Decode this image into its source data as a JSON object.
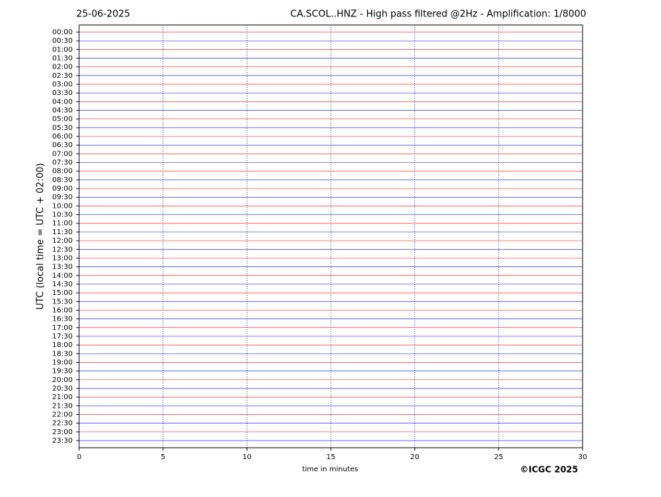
{
  "chart_data": {
    "type": "helicorder",
    "date": "25-06-2025",
    "title": "CA.SCOL..HNZ - High pass filtered @2Hz - Amplification: 1/8000",
    "y_label": "UTC (local time = UTC + 02:00)",
    "x_label": "time in minutes",
    "credit": "©ICGC 2025",
    "categories": [
      "00:00",
      "00:30",
      "01:00",
      "01:30",
      "02:00",
      "02:30",
      "03:00",
      "03:30",
      "04:00",
      "04:30",
      "05:00",
      "05:30",
      "06:00",
      "06:30",
      "07:00",
      "07:30",
      "08:00",
      "08:30",
      "09:00",
      "09:30",
      "10:00",
      "10:30",
      "11:00",
      "11:30",
      "12:00",
      "12:30",
      "13:00",
      "13:30",
      "14:00",
      "14:30",
      "15:00",
      "15:30",
      "16:00",
      "16:30",
      "17:00",
      "17:30",
      "18:00",
      "18:30",
      "19:00",
      "19:30",
      "20:00",
      "20:30",
      "21:00",
      "21:30",
      "22:00",
      "22:30",
      "23:00",
      "23:30"
    ],
    "colors": [
      "#ff0000",
      "#0000ff"
    ],
    "xlim": [
      0,
      30
    ],
    "xticks": [
      0,
      5,
      10,
      15,
      20,
      25,
      30
    ],
    "grid": true
  }
}
